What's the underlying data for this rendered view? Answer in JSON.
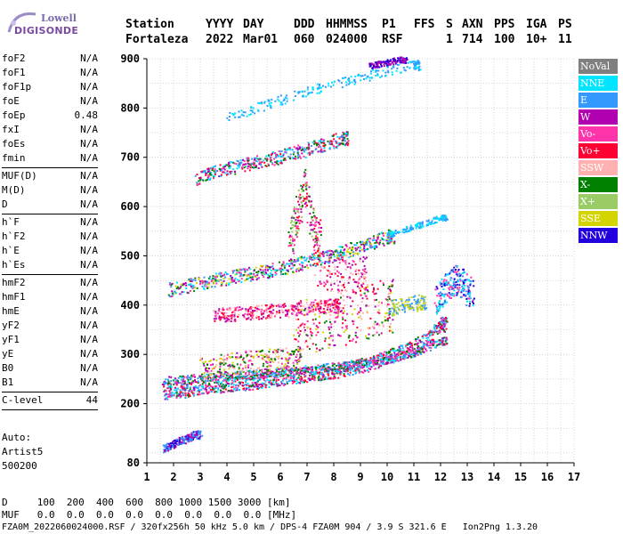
{
  "logo": {
    "line1": "Lowell",
    "line2": "DIGISONDE"
  },
  "header": {
    "labels": [
      "Station",
      "YYYY",
      "DAY",
      "DDD",
      "HHMMSS",
      "P1",
      "FFS",
      "S",
      "AXN",
      "PPS",
      "IGA",
      "PS"
    ],
    "values": [
      "Fortaleza",
      "2022",
      "Mar01",
      "060",
      "024000",
      "RSF",
      "1",
      "714",
      "100",
      "10+",
      "11"
    ]
  },
  "params": {
    "group1": [
      {
        "k": "foF2",
        "v": "N/A"
      },
      {
        "k": "foF1",
        "v": "N/A"
      },
      {
        "k": "foF1p",
        "v": "N/A"
      },
      {
        "k": "foE",
        "v": "N/A"
      },
      {
        "k": "foEp",
        "v": "0.48"
      },
      {
        "k": "fxI",
        "v": "N/A"
      },
      {
        "k": "foEs",
        "v": "N/A"
      },
      {
        "k": "fmin",
        "v": "N/A"
      }
    ],
    "group2": [
      {
        "k": "MUF(D)",
        "v": "N/A"
      },
      {
        "k": "M(D)",
        "v": "N/A"
      },
      {
        "k": "D",
        "v": "N/A"
      }
    ],
    "group3": [
      {
        "k": "h`F",
        "v": "N/A"
      },
      {
        "k": "h`F2",
        "v": "N/A"
      },
      {
        "k": "h`E",
        "v": "N/A"
      },
      {
        "k": "h`Es",
        "v": "N/A"
      }
    ],
    "group4": [
      {
        "k": "hmF2",
        "v": "N/A"
      },
      {
        "k": "hmF1",
        "v": "N/A"
      },
      {
        "k": "hmE",
        "v": "N/A"
      },
      {
        "k": "yF2",
        "v": "N/A"
      },
      {
        "k": "yF1",
        "v": "N/A"
      },
      {
        "k": "yE",
        "v": "N/A"
      },
      {
        "k": "B0",
        "v": "N/A"
      },
      {
        "k": "B1",
        "v": "N/A"
      }
    ],
    "clevel": {
      "k": "C-level",
      "v": "44"
    }
  },
  "auto": {
    "line1": "Auto:",
    "line2": "Artist5",
    "line3": "500200"
  },
  "legend": [
    {
      "label": "NoVal",
      "color": "#808080"
    },
    {
      "label": "NNE",
      "color": "#00e5ff"
    },
    {
      "label": "E",
      "color": "#3399ff"
    },
    {
      "label": "W",
      "color": "#b000b0"
    },
    {
      "label": "Vo-",
      "color": "#ff33aa"
    },
    {
      "label": "Vo+",
      "color": "#ff0033"
    },
    {
      "label": "SSW",
      "color": "#ffb0b0"
    },
    {
      "label": "X-",
      "color": "#008000"
    },
    {
      "label": "X+",
      "color": "#99cc66"
    },
    {
      "label": "SSE",
      "color": "#d4d400"
    },
    {
      "label": "NNW",
      "color": "#2200dd"
    }
  ],
  "chart_data": {
    "type": "scatter",
    "xlim": [
      1,
      17
    ],
    "ylim": [
      80,
      900
    ],
    "xticks": [
      1,
      2,
      3,
      4,
      5,
      6,
      7,
      8,
      9,
      10,
      11,
      12,
      13,
      14,
      15,
      16,
      17
    ],
    "yticks": [
      80,
      200,
      300,
      400,
      500,
      600,
      700,
      800,
      900
    ],
    "grid": true,
    "traces": [
      {
        "x": [
          1.6,
          2.0,
          2.4,
          2.8,
          3.2,
          3.6,
          4.0,
          4.4,
          4.8,
          5.2,
          5.6,
          6.0,
          6.4,
          6.8,
          7.2,
          7.6,
          8.0,
          8.4,
          8.8,
          9.2,
          9.6,
          10.0,
          10.4,
          10.8,
          11.2,
          11.6,
          12.0
        ],
        "y": [
          225,
          226,
          228,
          232,
          236,
          238,
          240,
          242,
          244,
          247,
          250,
          253,
          256,
          259,
          262,
          265,
          268,
          272,
          276,
          281,
          288,
          297,
          303,
          311,
          322,
          338,
          362
        ],
        "spread": 15,
        "width": 20,
        "colors": [
          "#ff0033",
          "#ff33aa",
          "#3399ff",
          "#008000",
          "#b000b0",
          "#00e5ff"
        ]
      },
      {
        "x": [
          1.6,
          2.2,
          2.8,
          3.4,
          4.0,
          4.6,
          5.2,
          5.8,
          6.4,
          7.0,
          7.6,
          8.2,
          8.8,
          9.4,
          10.0,
          10.5,
          11.0,
          11.5,
          12.0
        ],
        "y": [
          248,
          250,
          253,
          255,
          257,
          260,
          262,
          265,
          268,
          271,
          274,
          277,
          281,
          285,
          290,
          297,
          305,
          315,
          328
        ],
        "spread": 8,
        "width": 12,
        "colors": [
          "#3399ff",
          "#ff33aa",
          "#b000b0",
          "#00e5ff",
          "#008000"
        ]
      },
      {
        "x": [
          3.0,
          3.5,
          4.0,
          4.5,
          5.0,
          5.5,
          6.0,
          6.5
        ],
        "y": [
          272,
          276,
          282,
          285,
          288,
          290,
          292,
          296
        ],
        "spread": 22,
        "width": 14,
        "colors": [
          "#b000b0",
          "#ff33aa",
          "#d4d400",
          "#008000",
          "#ffb0b0"
        ]
      },
      {
        "x": [
          1.8,
          2.5,
          3.0,
          3.5,
          4.0,
          4.5,
          5.0,
          5.5,
          6.0,
          6.5,
          7.0,
          7.5,
          8.0,
          8.5,
          9.0,
          9.5,
          10.0
        ],
        "y": [
          432,
          440,
          446,
          452,
          456,
          461,
          465,
          470,
          476,
          482,
          490,
          497,
          504,
          512,
          521,
          530,
          540
        ],
        "spread": 14,
        "width": 16,
        "colors": [
          "#b000b0",
          "#3399ff",
          "#008000",
          "#00e5ff",
          "#ff33aa",
          "#d4d400"
        ]
      },
      {
        "x": [
          10.0,
          10.5,
          11.0,
          11.5,
          12.0
        ],
        "y": [
          545,
          552,
          560,
          568,
          578
        ],
        "spread": 6,
        "width": 6,
        "colors": [
          "#3399ff",
          "#00e5ff"
        ]
      },
      {
        "x": [
          6.5,
          7.0,
          7.5,
          8.0,
          8.5,
          9.0,
          9.5,
          10.0
        ],
        "y": [
          352,
          358,
          364,
          370,
          376,
          384,
          392,
          400
        ],
        "spread": 55,
        "width": 14,
        "colors": [
          "#ff0033",
          "#ff33aa",
          "#b000b0",
          "#ffb0b0",
          "#d4d400",
          "#008000"
        ]
      },
      {
        "x": [
          10.0,
          10.4,
          10.8,
          11.2
        ],
        "y": [
          395,
          398,
          402,
          406
        ],
        "spread": 16,
        "width": 10,
        "colors": [
          "#d4d400",
          "#99cc66",
          "#3399ff"
        ]
      },
      {
        "x": [
          11.8,
          12.0,
          12.2,
          12.4,
          12.6,
          12.8,
          13.0
        ],
        "y": [
          410,
          425,
          438,
          448,
          452,
          445,
          430
        ],
        "spread": 30,
        "width": 10,
        "colors": [
          "#3399ff",
          "#00e5ff",
          "#ff33aa",
          "#2200dd"
        ]
      },
      {
        "x": [
          2.8,
          3.3,
          3.8,
          4.3,
          4.8,
          5.3,
          5.8,
          6.3,
          6.8,
          7.3,
          7.8,
          8.3
        ],
        "y": [
          655,
          667,
          675,
          682,
          688,
          694,
          700,
          707,
          714,
          722,
          730,
          740
        ],
        "spread": 14,
        "width": 14,
        "colors": [
          "#b000b0",
          "#008000",
          "#3399ff",
          "#ff33aa",
          "#ff0033",
          "#00e5ff"
        ]
      },
      {
        "x": [
          4.0,
          5.0,
          6.0,
          7.0,
          8.0,
          9.0,
          10.0,
          11.0
        ],
        "y": [
          782,
          800,
          818,
          835,
          850,
          862,
          876,
          888
        ],
        "spread": 10,
        "width": 6,
        "colors": [
          "#00e5ff",
          "#3399ff"
        ]
      },
      {
        "x": [
          6.3,
          6.5,
          6.7,
          6.9,
          7.1,
          7.3
        ],
        "y": [
          520,
          560,
          600,
          640,
          580,
          540
        ],
        "spread": 40,
        "width": 10,
        "colors": [
          "#ff0033",
          "#ff33aa",
          "#008000",
          "#b000b0",
          "#99cc66"
        ]
      },
      {
        "x": [
          7.2,
          7.8,
          8.2,
          8.6,
          9.0
        ],
        "y": [
          480,
          470,
          465,
          462,
          460
        ],
        "spread": 40,
        "width": 8,
        "colors": [
          "#ff0033",
          "#ffb0b0",
          "#ff33aa",
          "#b000b0"
        ]
      },
      {
        "x": [
          1.6,
          1.8,
          2.0,
          2.2,
          2.4,
          2.6,
          2.8
        ],
        "y": [
          110,
          115,
          120,
          125,
          129,
          133,
          138
        ],
        "spread": 8,
        "width": 8,
        "colors": [
          "#2200dd",
          "#b000b0",
          "#3399ff"
        ]
      },
      {
        "x": [
          9.3,
          9.6,
          9.9,
          10.2,
          10.5
        ],
        "y": [
          886,
          890,
          893,
          896,
          899
        ],
        "spread": 6,
        "width": 8,
        "colors": [
          "#2200dd",
          "#b000b0"
        ]
      },
      {
        "x": [
          3.5,
          4.0,
          4.5,
          5.0,
          5.5,
          6.0,
          6.5,
          7.0,
          7.5,
          8.0
        ],
        "y": [
          382,
          382,
          384,
          386,
          388,
          390,
          392,
          394,
          396,
          400
        ],
        "spread": 14,
        "width": 16,
        "colors": [
          "#ff33aa",
          "#ffb0b0",
          "#b000b0",
          "#ff0033"
        ]
      }
    ]
  },
  "footer": {
    "line1": "D     100  200  400  600  800 1000 1500 3000 [km]",
    "line2": "MUF   0.0  0.0  0.0  0.0  0.0  0.0  0.0  0.0 [MHz]",
    "line3": "FZA0M_2022060024000.RSF / 320fx256h 50 kHz 5.0 km / DPS-4 FZA0M 904 / 3.9 S 321.6 E   Ion2Png 1.3.20"
  }
}
